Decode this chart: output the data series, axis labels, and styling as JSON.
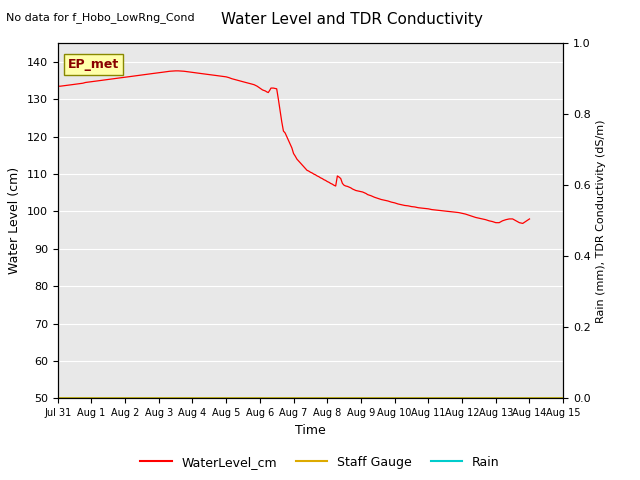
{
  "title": "Water Level and TDR Conductivity",
  "subtitle": "No data for f_Hobo_LowRng_Cond",
  "ylabel_left": "Water Level (cm)",
  "ylabel_right": "Rain (mm), TDR Conductivity (dS/m)",
  "xlabel": "Time",
  "ylim_left": [
    50,
    145
  ],
  "ylim_right": [
    0.0,
    1.0
  ],
  "yticks_left": [
    50,
    60,
    70,
    80,
    90,
    100,
    110,
    120,
    130,
    140
  ],
  "yticks_right": [
    0.0,
    0.2,
    0.4,
    0.6,
    0.8,
    1.0
  ],
  "legend_labels": [
    "WaterLevel_cm",
    "Staff Gauge",
    "Rain"
  ],
  "legend_colors": [
    "#ff0000",
    "#ddaa00",
    "#00cccc"
  ],
  "ep_met_label": "EP_met",
  "background_color": "#e8e8e8",
  "line_color_water": "#ff0000",
  "line_color_staff": "#ddaa00",
  "line_color_rain": "#00cccc",
  "water_level_data": [
    [
      0.0,
      133.5
    ],
    [
      0.08,
      133.5
    ],
    [
      0.17,
      133.6
    ],
    [
      0.25,
      133.7
    ],
    [
      0.33,
      133.8
    ],
    [
      0.42,
      133.9
    ],
    [
      0.5,
      134.0
    ],
    [
      0.58,
      134.1
    ],
    [
      0.67,
      134.2
    ],
    [
      0.75,
      134.3
    ],
    [
      0.83,
      134.5
    ],
    [
      0.92,
      134.6
    ],
    [
      1.0,
      134.7
    ],
    [
      1.08,
      134.8
    ],
    [
      1.17,
      134.9
    ],
    [
      1.25,
      135.0
    ],
    [
      1.33,
      135.1
    ],
    [
      1.42,
      135.2
    ],
    [
      1.5,
      135.3
    ],
    [
      1.58,
      135.4
    ],
    [
      1.67,
      135.5
    ],
    [
      1.75,
      135.6
    ],
    [
      1.83,
      135.7
    ],
    [
      1.92,
      135.8
    ],
    [
      2.0,
      135.9
    ],
    [
      2.08,
      136.0
    ],
    [
      2.17,
      136.1
    ],
    [
      2.25,
      136.2
    ],
    [
      2.33,
      136.3
    ],
    [
      2.42,
      136.4
    ],
    [
      2.5,
      136.5
    ],
    [
      2.58,
      136.6
    ],
    [
      2.67,
      136.7
    ],
    [
      2.75,
      136.8
    ],
    [
      2.83,
      136.9
    ],
    [
      2.92,
      137.0
    ],
    [
      3.0,
      137.1
    ],
    [
      3.08,
      137.2
    ],
    [
      3.17,
      137.3
    ],
    [
      3.25,
      137.4
    ],
    [
      3.33,
      137.5
    ],
    [
      3.42,
      137.55
    ],
    [
      3.5,
      137.6
    ],
    [
      3.58,
      137.6
    ],
    [
      3.67,
      137.55
    ],
    [
      3.75,
      137.5
    ],
    [
      3.83,
      137.4
    ],
    [
      3.92,
      137.3
    ],
    [
      4.0,
      137.2
    ],
    [
      4.08,
      137.1
    ],
    [
      4.17,
      137.0
    ],
    [
      4.25,
      136.9
    ],
    [
      4.33,
      136.8
    ],
    [
      4.42,
      136.7
    ],
    [
      4.5,
      136.6
    ],
    [
      4.58,
      136.5
    ],
    [
      4.67,
      136.4
    ],
    [
      4.75,
      136.3
    ],
    [
      4.83,
      136.2
    ],
    [
      4.92,
      136.1
    ],
    [
      5.0,
      136.0
    ],
    [
      5.08,
      135.8
    ],
    [
      5.17,
      135.5
    ],
    [
      5.25,
      135.3
    ],
    [
      5.33,
      135.1
    ],
    [
      5.42,
      134.9
    ],
    [
      5.5,
      134.7
    ],
    [
      5.58,
      134.5
    ],
    [
      5.67,
      134.3
    ],
    [
      5.75,
      134.1
    ],
    [
      5.83,
      133.9
    ],
    [
      5.92,
      133.5
    ],
    [
      6.0,
      133.0
    ],
    [
      6.08,
      132.5
    ],
    [
      6.17,
      132.2
    ],
    [
      6.2,
      132.0
    ],
    [
      6.25,
      131.8
    ],
    [
      6.3,
      132.5
    ],
    [
      6.33,
      133.0
    ],
    [
      6.4,
      133.0
    ],
    [
      6.45,
      132.9
    ],
    [
      6.5,
      132.8
    ],
    [
      6.55,
      130.0
    ],
    [
      6.6,
      127.0
    ],
    [
      6.65,
      124.0
    ],
    [
      6.7,
      121.5
    ],
    [
      6.75,
      121.0
    ],
    [
      6.8,
      120.0
    ],
    [
      6.85,
      119.0
    ],
    [
      6.9,
      118.0
    ],
    [
      6.95,
      117.0
    ],
    [
      7.0,
      115.5
    ],
    [
      7.05,
      114.8
    ],
    [
      7.1,
      114.0
    ],
    [
      7.15,
      113.5
    ],
    [
      7.2,
      113.0
    ],
    [
      7.25,
      112.5
    ],
    [
      7.3,
      112.0
    ],
    [
      7.35,
      111.5
    ],
    [
      7.4,
      111.0
    ],
    [
      7.45,
      110.8
    ],
    [
      7.5,
      110.5
    ],
    [
      7.55,
      110.3
    ],
    [
      7.6,
      110.0
    ],
    [
      7.65,
      109.8
    ],
    [
      7.7,
      109.5
    ],
    [
      7.75,
      109.3
    ],
    [
      7.8,
      109.0
    ],
    [
      7.85,
      108.8
    ],
    [
      7.9,
      108.5
    ],
    [
      7.95,
      108.3
    ],
    [
      8.0,
      108.0
    ],
    [
      8.05,
      107.8
    ],
    [
      8.1,
      107.5
    ],
    [
      8.15,
      107.3
    ],
    [
      8.2,
      107.0
    ],
    [
      8.25,
      106.8
    ],
    [
      8.3,
      109.5
    ],
    [
      8.35,
      109.2
    ],
    [
      8.4,
      108.8
    ],
    [
      8.45,
      107.5
    ],
    [
      8.5,
      107.0
    ],
    [
      8.55,
      106.8
    ],
    [
      8.6,
      106.7
    ],
    [
      8.65,
      106.5
    ],
    [
      8.7,
      106.3
    ],
    [
      8.75,
      106.0
    ],
    [
      8.8,
      105.8
    ],
    [
      8.85,
      105.6
    ],
    [
      8.9,
      105.5
    ],
    [
      8.95,
      105.4
    ],
    [
      9.0,
      105.3
    ],
    [
      9.05,
      105.2
    ],
    [
      9.1,
      105.0
    ],
    [
      9.15,
      104.8
    ],
    [
      9.2,
      104.5
    ],
    [
      9.3,
      104.2
    ],
    [
      9.4,
      103.8
    ],
    [
      9.5,
      103.5
    ],
    [
      9.6,
      103.2
    ],
    [
      9.7,
      103.0
    ],
    [
      9.8,
      102.8
    ],
    [
      9.9,
      102.5
    ],
    [
      10.0,
      102.3
    ],
    [
      10.1,
      102.0
    ],
    [
      10.2,
      101.8
    ],
    [
      10.3,
      101.6
    ],
    [
      10.4,
      101.5
    ],
    [
      10.5,
      101.3
    ],
    [
      10.6,
      101.2
    ],
    [
      10.7,
      101.0
    ],
    [
      10.8,
      100.9
    ],
    [
      10.9,
      100.8
    ],
    [
      11.0,
      100.7
    ],
    [
      11.1,
      100.5
    ],
    [
      11.2,
      100.4
    ],
    [
      11.3,
      100.3
    ],
    [
      11.4,
      100.2
    ],
    [
      11.5,
      100.1
    ],
    [
      11.6,
      100.0
    ],
    [
      11.7,
      99.9
    ],
    [
      11.8,
      99.8
    ],
    [
      11.9,
      99.7
    ],
    [
      12.0,
      99.5
    ],
    [
      12.1,
      99.3
    ],
    [
      12.2,
      99.0
    ],
    [
      12.3,
      98.7
    ],
    [
      12.4,
      98.4
    ],
    [
      12.5,
      98.2
    ],
    [
      12.6,
      98.0
    ],
    [
      12.7,
      97.8
    ],
    [
      12.8,
      97.5
    ],
    [
      12.9,
      97.3
    ],
    [
      13.0,
      97.0
    ],
    [
      13.1,
      97.0
    ],
    [
      13.2,
      97.5
    ],
    [
      13.3,
      97.8
    ],
    [
      13.4,
      98.0
    ],
    [
      13.5,
      98.0
    ],
    [
      13.6,
      97.5
    ],
    [
      13.7,
      97.0
    ],
    [
      13.8,
      96.8
    ],
    [
      14.0,
      98.0
    ]
  ],
  "xtick_dates": [
    "Jul 31",
    "Aug 1",
    "Aug 2",
    "Aug 3",
    "Aug 4",
    "Aug 5",
    "Aug 6",
    "Aug 7",
    "Aug 8",
    "Aug 9",
    "Aug 10",
    "Aug 11",
    "Aug 12",
    "Aug 13",
    "Aug 14",
    "Aug 15"
  ],
  "xtick_positions": [
    0,
    1,
    2,
    3,
    4,
    5,
    6,
    7,
    8,
    9,
    10,
    11,
    12,
    13,
    14,
    15
  ],
  "xlim": [
    0,
    15
  ]
}
